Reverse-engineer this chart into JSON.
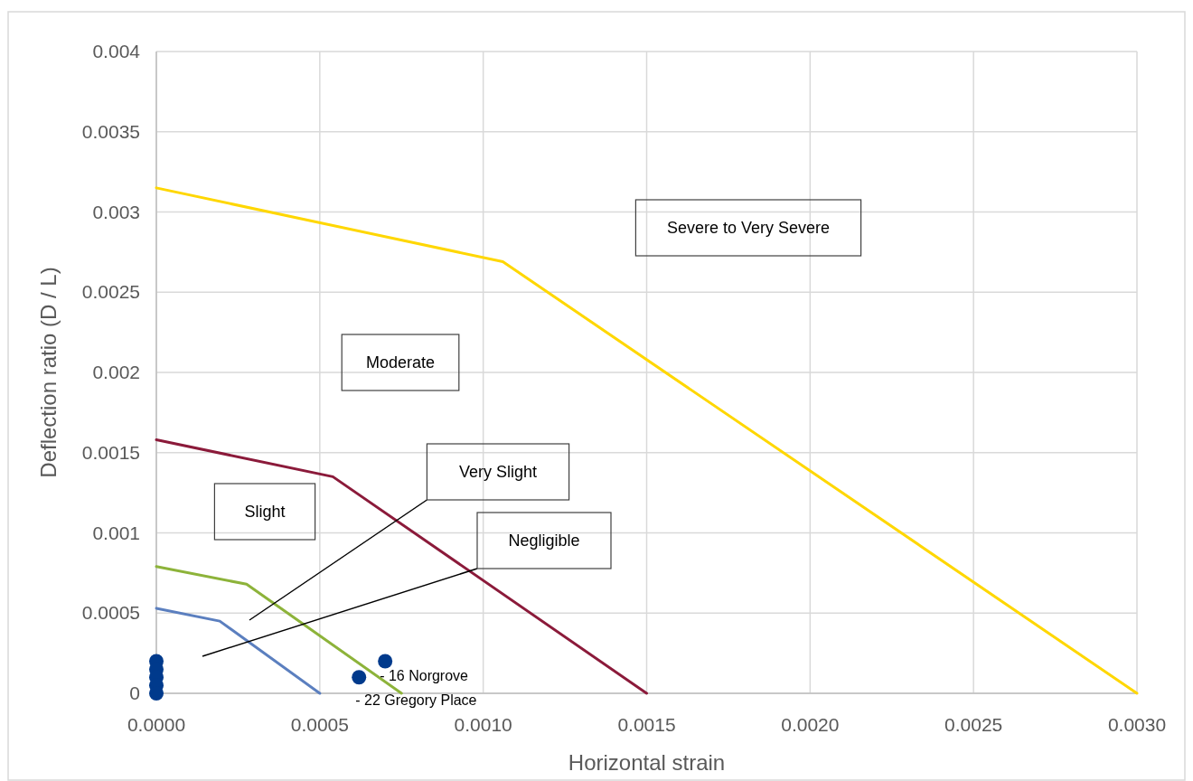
{
  "chart_data": {
    "type": "line",
    "xlabel": "Horizontal strain",
    "ylabel": "Deflection ratio (D / L)",
    "xlim": [
      0,
      0.003
    ],
    "xticks": [
      {
        "value": 0,
        "label": "0.0000"
      },
      {
        "value": 0.0005,
        "label": "0.0005"
      },
      {
        "value": 0.001,
        "label": "0.0010"
      },
      {
        "value": 0.0015,
        "label": "0.0015"
      },
      {
        "value": 0.002,
        "label": "0.0020"
      },
      {
        "value": 0.0025,
        "label": "0.0025"
      },
      {
        "value": 0.003,
        "label": "0.0030"
      }
    ],
    "ylim": [
      0,
      0.004
    ],
    "yticks": [
      0,
      0.0005,
      0.001,
      0.0015,
      0.002,
      0.0025,
      0.003,
      0.0035,
      0.004
    ],
    "grid": true,
    "marker": "none",
    "series": [
      {
        "color": "#5b7fbf",
        "x": [
          0,
          0.000194,
          0.0005
        ],
        "values": [
          0.00053,
          0.00045,
          0
        ]
      },
      {
        "color": "#8db33a",
        "x": [
          0,
          0.000276,
          0.00075
        ],
        "values": [
          0.00079,
          0.00068,
          0
        ]
      },
      {
        "color": "#8b1a3a",
        "x": [
          0,
          0.00054,
          0.0015
        ],
        "values": [
          0.00158,
          0.00135,
          0
        ]
      },
      {
        "color": "#ffd700",
        "x": [
          0,
          0.00106,
          0.003
        ],
        "values": [
          0.00315,
          0.00269,
          0
        ]
      },
      {
        "type": "scatter",
        "marker": "circle",
        "color": "#003a8c",
        "x": [
          0,
          0,
          0,
          0,
          0,
          0.00062,
          0.0007
        ],
        "values": [
          0.0002,
          0.00015,
          0.0001,
          5e-05,
          0,
          0.0001,
          0.0002
        ]
      }
    ],
    "annotations": [
      "Severe to Very Severe",
      "Moderate",
      "Slight",
      "Very Slight",
      "Negligible",
      {
        "text": "- 16 Norgrove",
        "x": 0.0007,
        "y": 0.0002
      },
      {
        "text": "- 22 Gregory Place",
        "x": 0.00062,
        "y": 0.0001
      }
    ]
  }
}
